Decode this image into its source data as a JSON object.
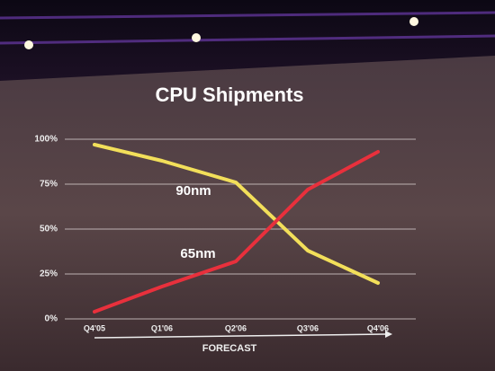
{
  "chart_data": {
    "type": "line",
    "title": "CPU Shipments",
    "categories": [
      "Q4'05",
      "Q1'06",
      "Q2'06",
      "Q3'06",
      "Q4'06"
    ],
    "series": [
      {
        "name": "90nm",
        "color": "#f2df5a",
        "values": [
          97,
          88,
          76,
          38,
          20
        ]
      },
      {
        "name": "65nm",
        "color": "#e8303c",
        "values": [
          4,
          18,
          32,
          72,
          93
        ]
      }
    ],
    "ylim": [
      0,
      100
    ],
    "yticks": [
      {
        "value": 0,
        "label": "0%"
      },
      {
        "value": 25,
        "label": "25%"
      },
      {
        "value": 50,
        "label": "50%"
      },
      {
        "value": 75,
        "label": "75%"
      },
      {
        "value": 100,
        "label": "100%"
      }
    ],
    "grid": true,
    "annotation": "FORECAST"
  }
}
